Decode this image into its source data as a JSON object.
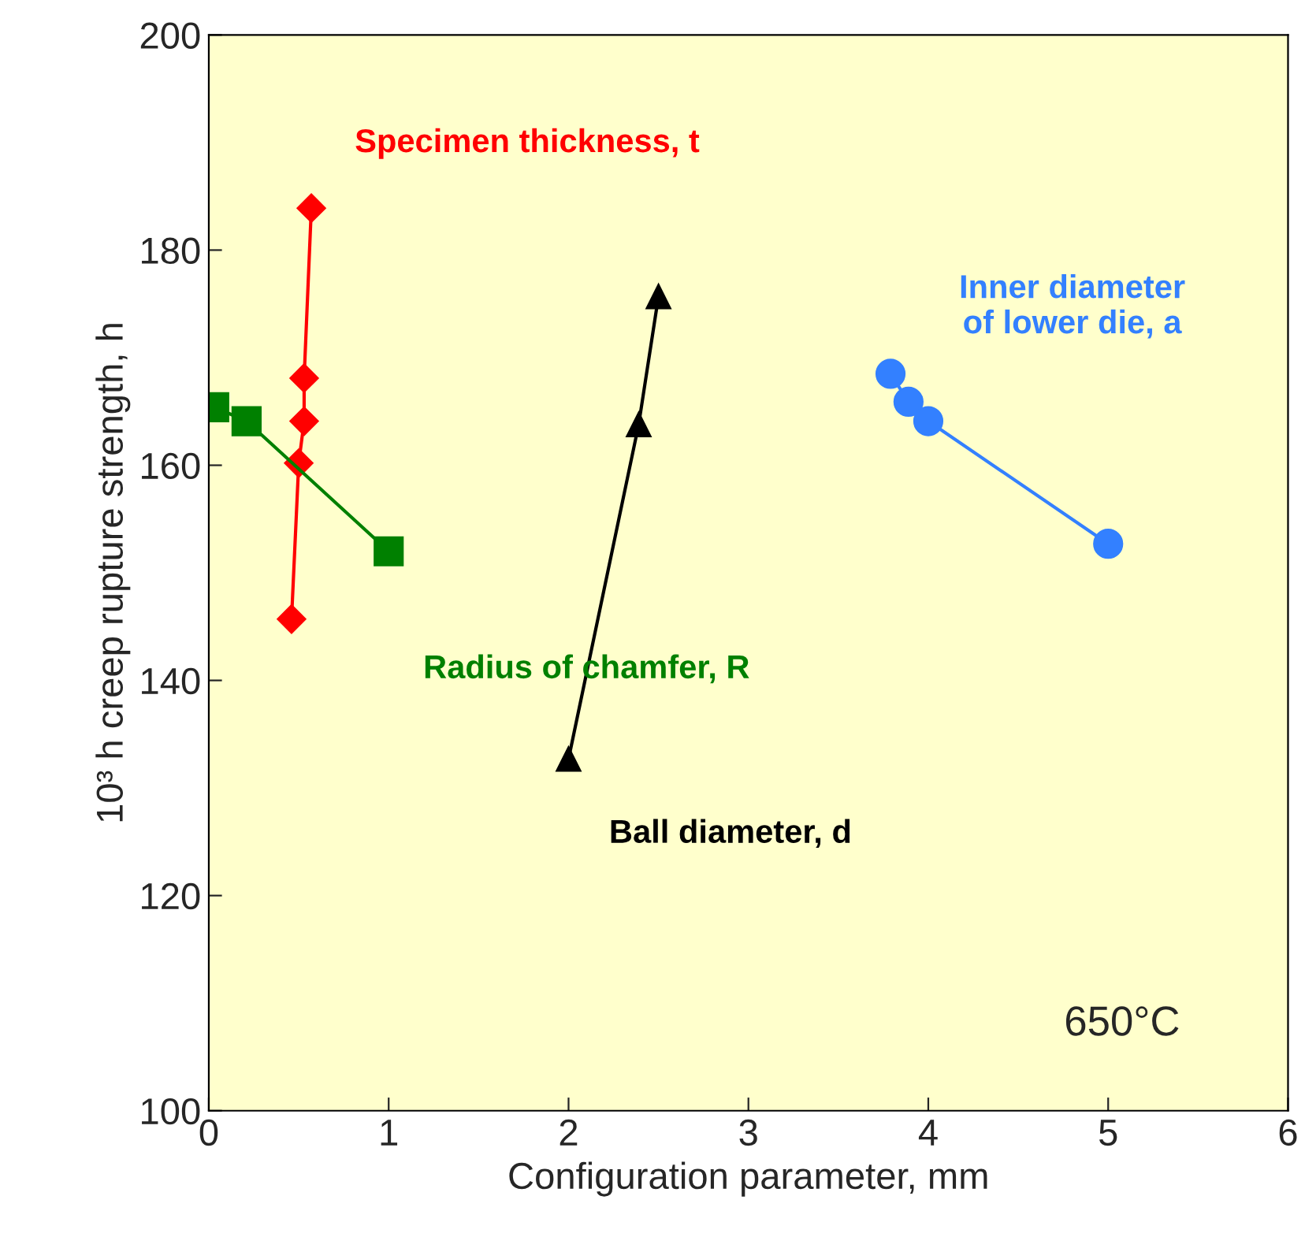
{
  "chart_data": {
    "type": "line",
    "xlabel": "Configuration parameter, mm",
    "ylabel": "10³ h creep rupture strength, h",
    "xlim": [
      0,
      6
    ],
    "xticks": [
      0,
      1,
      2,
      3,
      4,
      5,
      6
    ],
    "ylim": [
      100,
      200
    ],
    "yticks": [
      100,
      120,
      140,
      160,
      180,
      200
    ],
    "grid": false,
    "legend": false,
    "annotations": [
      "650°C"
    ],
    "series": [
      {
        "name": "Specimen thickness, t",
        "color": "#ff0000",
        "marker": "diamond",
        "x": [
          0.46,
          0.5,
          0.53,
          0.53,
          0.57
        ],
        "values": [
          145.7,
          160.2,
          164.1,
          168.1,
          183.9
        ]
      },
      {
        "name": "Radius of chamfer, R",
        "color": "#008000",
        "marker": "square",
        "x": [
          0.03,
          0.21,
          1.0
        ],
        "values": [
          165.4,
          164.1,
          152.0
        ]
      },
      {
        "name": "Ball diameter, d",
        "color": "#000000",
        "marker": "triangle",
        "x": [
          2.0,
          2.39,
          2.5
        ],
        "values": [
          132.7,
          163.8,
          175.7
        ]
      },
      {
        "name": "Inner diameter\nof lower die, a",
        "color": "#3380ff",
        "marker": "circle",
        "x": [
          3.79,
          3.89,
          4.0,
          5.0
        ],
        "values": [
          168.5,
          165.9,
          164.1,
          152.7
        ]
      }
    ]
  }
}
